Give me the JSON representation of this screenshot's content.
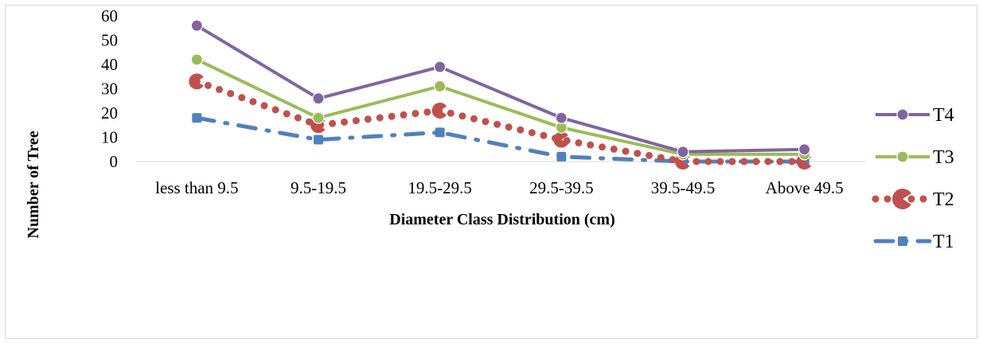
{
  "chart_data": {
    "type": "line",
    "title": "",
    "xlabel": "Diameter Class Distribution (cm)",
    "ylabel": "Number of Tree",
    "categories": [
      "less than 9.5",
      "9.5-19.5",
      "19.5-29.5",
      "29.5-39.5",
      "39.5-49.5",
      "Above 49.5"
    ],
    "ylim": [
      0,
      60
    ],
    "yticks": [
      "0",
      "10",
      "20",
      "30",
      "40",
      "50",
      "60"
    ],
    "grid": false,
    "legend_position": "right",
    "series": [
      {
        "name": "T4",
        "values": [
          56,
          26,
          39,
          18,
          4,
          5
        ],
        "color": "#8064a2",
        "style": "solid",
        "marker": "circle"
      },
      {
        "name": "T3",
        "values": [
          42,
          18,
          31,
          14,
          3,
          3
        ],
        "color": "#9bbb59",
        "style": "solid",
        "marker": "circle"
      },
      {
        "name": "T2",
        "values": [
          33,
          15,
          21,
          9,
          0,
          0
        ],
        "color": "#c0504d",
        "style": "round-dot",
        "marker": "pac"
      },
      {
        "name": "T1",
        "values": [
          18,
          9,
          12,
          2,
          0,
          0
        ],
        "color": "#4f81bd",
        "style": "dash-dot",
        "marker": "square"
      }
    ]
  }
}
